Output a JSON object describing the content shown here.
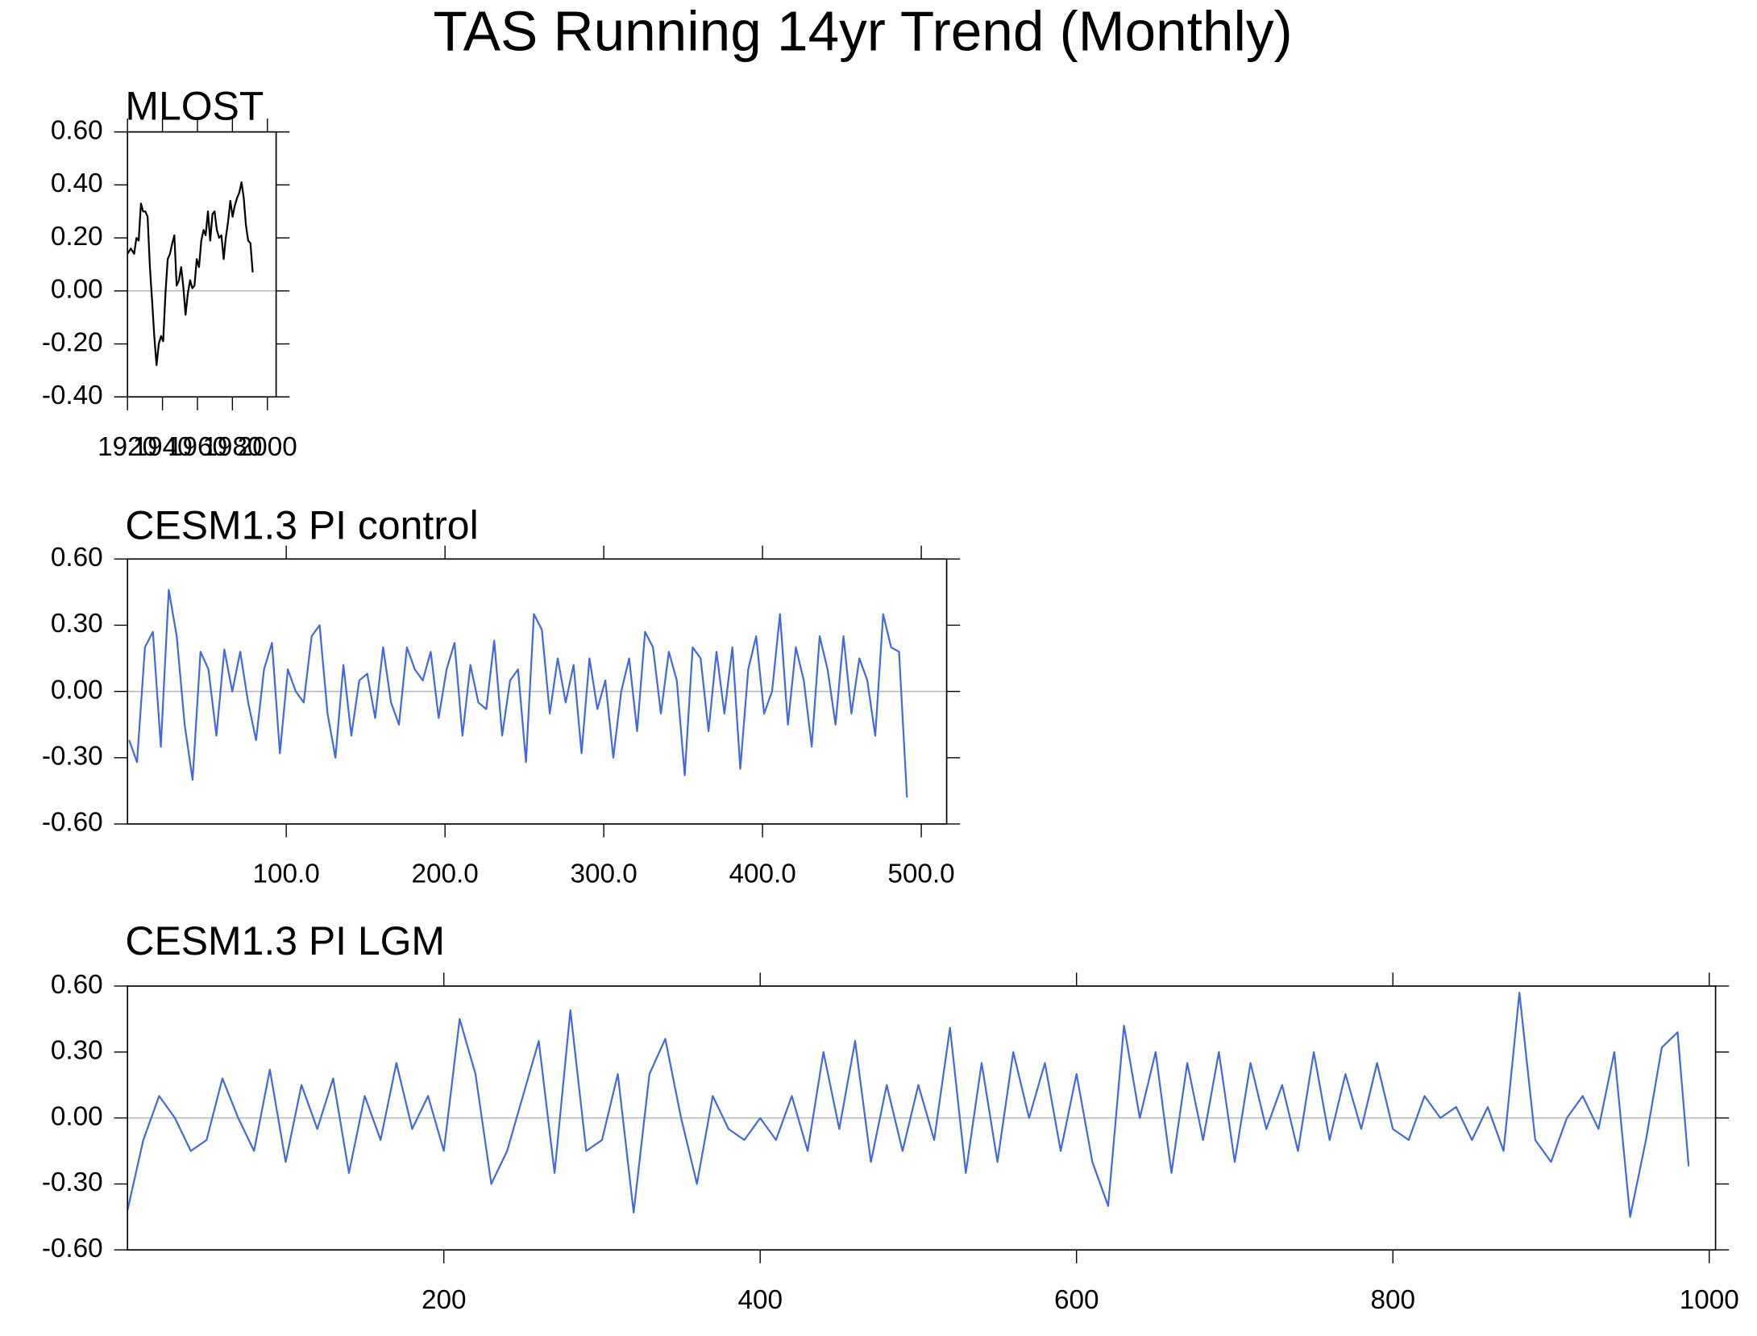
{
  "title": "TAS Running 14yr Trend (Monthly)",
  "chart_data": [
    {
      "type": "line",
      "title": "MLOST",
      "color": "#000000",
      "zero_line": true,
      "xlim": [
        1920,
        2005
      ],
      "xticks": [
        1920,
        1940,
        1960,
        1980,
        2000
      ],
      "ylim": [
        -0.4,
        0.6
      ],
      "yticks": [
        {
          "value": -0.4,
          "label": "-0.40"
        },
        {
          "value": -0.2,
          "label": "-0.20"
        },
        {
          "value": 0,
          "label": "0.00"
        },
        {
          "value": 0.2,
          "label": "0.20"
        },
        {
          "value": 0.4,
          "label": "0.40"
        },
        {
          "value": 0.6,
          "label": "0.60"
        }
      ],
      "x": [
        1920.0,
        1921.9,
        1923.8,
        1925.1,
        1926.4,
        1927.7,
        1928.9,
        1930.2,
        1931.5,
        1932.8,
        1934.1,
        1935.3,
        1936.6,
        1937.9,
        1939.2,
        1940.4,
        1941.7,
        1943.0,
        1944.3,
        1945.6,
        1946.8,
        1948.1,
        1949.4,
        1950.7,
        1952.0,
        1953.2,
        1954.5,
        1955.8,
        1957.1,
        1958.3,
        1959.6,
        1960.9,
        1962.2,
        1963.5,
        1964.7,
        1966.0,
        1967.3,
        1968.6,
        1969.8,
        1971.1,
        1972.4,
        1973.7,
        1975.0,
        1976.2,
        1977.5,
        1978.8,
        1980.1,
        1981.3,
        1982.6,
        1983.9,
        1985.2,
        1986.5,
        1987.7,
        1989.0,
        1990.3,
        1991.6
      ],
      "values": [
        0.14,
        0.16,
        0.14,
        0.2,
        0.19,
        0.33,
        0.3,
        0.3,
        0.28,
        0.09,
        -0.04,
        -0.17,
        -0.28,
        -0.2,
        -0.17,
        -0.19,
        -0.01,
        0.12,
        0.14,
        0.18,
        0.21,
        0.02,
        0.04,
        0.09,
        0.01,
        -0.09,
        -0.01,
        0.04,
        0.01,
        0.02,
        0.12,
        0.09,
        0.19,
        0.23,
        0.21,
        0.3,
        0.19,
        0.29,
        0.3,
        0.23,
        0.2,
        0.21,
        0.12,
        0.2,
        0.26,
        0.34,
        0.28,
        0.32,
        0.35,
        0.37,
        0.41,
        0.35,
        0.25,
        0.19,
        0.18,
        0.07
      ]
    },
    {
      "type": "line",
      "title": "CESM1.3 PI control",
      "color": "#4169e1",
      "zero_line": true,
      "xlim": [
        0,
        516
      ],
      "xticks": [
        {
          "value": 100,
          "label": "100.0"
        },
        {
          "value": 200,
          "label": "200.0"
        },
        {
          "value": 300,
          "label": "300.0"
        },
        {
          "value": 400,
          "label": "400.0"
        },
        {
          "value": 500,
          "label": "500.0"
        }
      ],
      "ylim": [
        -0.6,
        0.6
      ],
      "yticks": [
        {
          "value": -0.6,
          "label": "-0.60"
        },
        {
          "value": -0.3,
          "label": "-0.30"
        },
        {
          "value": 0,
          "label": "0.00"
        },
        {
          "value": 0.3,
          "label": "0.30"
        },
        {
          "value": 0.6,
          "label": "0.60"
        }
      ],
      "x": [
        1,
        6,
        11,
        16,
        21,
        26,
        31,
        36,
        41,
        46,
        51,
        56,
        61,
        66,
        71,
        76,
        81,
        86,
        91,
        96,
        101,
        106,
        111,
        116,
        121,
        126,
        131,
        136,
        141,
        146,
        151,
        156,
        161,
        166,
        171,
        176,
        181,
        186,
        191,
        196,
        201,
        206,
        211,
        216,
        221,
        226,
        231,
        236,
        241,
        246,
        251,
        256,
        261,
        266,
        271,
        276,
        281,
        286,
        291,
        296,
        301,
        306,
        311,
        316,
        321,
        326,
        331,
        336,
        341,
        346,
        351,
        356,
        361,
        366,
        371,
        376,
        381,
        386,
        391,
        396,
        401,
        406,
        411,
        416,
        421,
        426,
        431,
        436,
        441,
        446,
        451,
        456,
        461,
        466,
        471,
        476,
        481,
        486,
        491
      ],
      "values": [
        -0.22,
        -0.32,
        0.2,
        0.27,
        -0.25,
        0.46,
        0.25,
        -0.15,
        -0.4,
        0.18,
        0.1,
        -0.2,
        0.19,
        0.0,
        0.18,
        -0.05,
        -0.22,
        0.1,
        0.22,
        -0.28,
        0.1,
        0.0,
        -0.05,
        0.25,
        0.3,
        -0.1,
        -0.3,
        0.12,
        -0.2,
        0.05,
        0.08,
        -0.12,
        0.2,
        -0.05,
        -0.15,
        0.2,
        0.1,
        0.05,
        0.18,
        -0.12,
        0.1,
        0.22,
        -0.2,
        0.12,
        -0.05,
        -0.08,
        0.23,
        -0.2,
        0.05,
        0.1,
        -0.32,
        0.35,
        0.28,
        -0.1,
        0.15,
        -0.05,
        0.12,
        -0.28,
        0.15,
        -0.08,
        0.05,
        -0.3,
        0.0,
        0.15,
        -0.18,
        0.27,
        0.2,
        -0.1,
        0.18,
        0.05,
        -0.38,
        0.2,
        0.15,
        -0.18,
        0.18,
        -0.1,
        0.2,
        -0.35,
        0.1,
        0.25,
        -0.1,
        0.0,
        0.35,
        -0.15,
        0.2,
        0.05,
        -0.25,
        0.25,
        0.1,
        -0.15,
        0.25,
        -0.1,
        0.15,
        0.05,
        -0.2,
        0.35,
        0.2,
        0.18,
        -0.48
      ]
    },
    {
      "type": "line",
      "title": "CESM1.3 PI LGM",
      "color": "#4169e1",
      "zero_line": true,
      "xlim": [
        0,
        1004
      ],
      "xticks": [
        200,
        400,
        600,
        800,
        1000
      ],
      "ylim": [
        -0.6,
        0.6
      ],
      "yticks": [
        {
          "value": -0.6,
          "label": "-0.60"
        },
        {
          "value": -0.3,
          "label": "-0.30"
        },
        {
          "value": 0,
          "label": "0.00"
        },
        {
          "value": 0.3,
          "label": "0.30"
        },
        {
          "value": 0.6,
          "label": "0.60"
        }
      ],
      "x": [
        0,
        10,
        20,
        30,
        40,
        50,
        60,
        70,
        80,
        90,
        100,
        110,
        120,
        130,
        140,
        150,
        160,
        170,
        180,
        190,
        200,
        210,
        220,
        230,
        240,
        250,
        260,
        270,
        280,
        290,
        300,
        310,
        320,
        330,
        340,
        350,
        360,
        370,
        380,
        390,
        400,
        410,
        420,
        430,
        440,
        450,
        460,
        470,
        480,
        490,
        500,
        510,
        520,
        530,
        540,
        550,
        560,
        570,
        580,
        590,
        600,
        610,
        620,
        630,
        640,
        650,
        660,
        670,
        680,
        690,
        700,
        710,
        720,
        730,
        740,
        750,
        760,
        770,
        780,
        790,
        800,
        810,
        820,
        830,
        840,
        850,
        860,
        870,
        880,
        890,
        900,
        910,
        920,
        930,
        940,
        950,
        960,
        970,
        980,
        987
      ],
      "values": [
        -0.42,
        -0.1,
        0.1,
        0.0,
        -0.15,
        -0.1,
        0.18,
        0.0,
        -0.15,
        0.22,
        -0.2,
        0.15,
        -0.05,
        0.18,
        -0.25,
        0.1,
        -0.1,
        0.25,
        -0.05,
        0.1,
        -0.15,
        0.45,
        0.2,
        -0.3,
        -0.15,
        0.1,
        0.35,
        -0.25,
        0.49,
        -0.15,
        -0.1,
        0.2,
        -0.43,
        0.2,
        0.36,
        0.0,
        -0.3,
        0.1,
        -0.05,
        -0.1,
        0.0,
        -0.1,
        0.1,
        -0.15,
        0.3,
        -0.05,
        0.35,
        -0.2,
        0.15,
        -0.15,
        0.15,
        -0.1,
        0.41,
        -0.25,
        0.25,
        -0.2,
        0.3,
        0.0,
        0.25,
        -0.15,
        0.2,
        -0.2,
        -0.4,
        0.42,
        0.0,
        0.3,
        -0.25,
        0.25,
        -0.1,
        0.3,
        -0.2,
        0.25,
        -0.05,
        0.15,
        -0.15,
        0.3,
        -0.1,
        0.2,
        -0.05,
        0.25,
        -0.05,
        -0.1,
        0.1,
        0.0,
        0.05,
        -0.1,
        0.05,
        -0.15,
        0.57,
        -0.1,
        -0.2,
        0.0,
        0.1,
        -0.05,
        0.3,
        -0.45,
        -0.1,
        0.32,
        0.39,
        -0.22
      ]
    }
  ]
}
